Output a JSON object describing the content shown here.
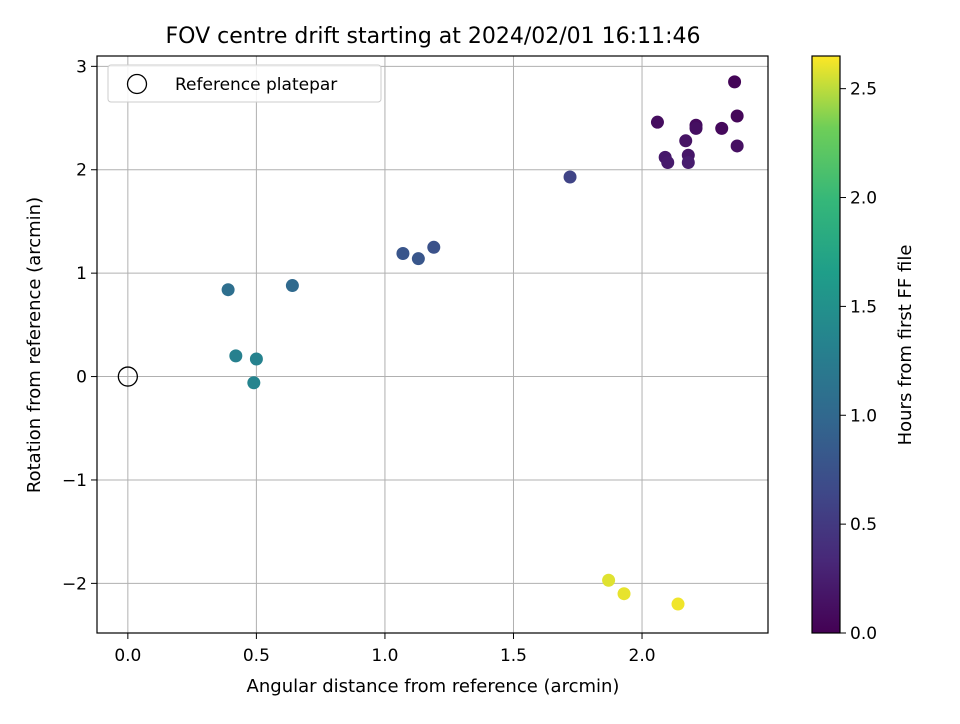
{
  "chart_data": {
    "type": "scatter",
    "title": "FOV centre drift starting at 2024/02/01 16:11:46",
    "xlabel": "Angular distance from reference (arcmin)",
    "ylabel": "Rotation from reference (arcmin)",
    "xlim": [
      -0.12,
      2.49
    ],
    "ylim": [
      -2.48,
      3.1
    ],
    "xticks": [
      0.0,
      0.5,
      1.0,
      1.5,
      2.0
    ],
    "xtick_labels": [
      "0.0",
      "0.5",
      "1.0",
      "1.5",
      "2.0"
    ],
    "yticks": [
      -2,
      -1,
      0,
      1,
      2,
      3
    ],
    "ytick_labels": [
      "−2",
      "−1",
      "0",
      "1",
      "2",
      "3"
    ],
    "grid": true,
    "legend": {
      "placement": "top-left",
      "entries": [
        "Reference platepar"
      ]
    },
    "reference_point": {
      "x": 0.0,
      "y": 0.0
    },
    "colorbar": {
      "label": "Hours from first FF file",
      "colormap": "viridis",
      "range": [
        0.0,
        2.65
      ],
      "ticks": [
        0.0,
        0.5,
        1.0,
        1.5,
        2.0,
        2.5
      ],
      "tick_labels": [
        "0.0",
        "0.5",
        "1.0",
        "1.5",
        "2.0",
        "2.5"
      ]
    },
    "points": [
      {
        "x": 2.36,
        "y": 2.85,
        "t": 0.03
      },
      {
        "x": 2.37,
        "y": 2.52,
        "t": 0.05
      },
      {
        "x": 2.06,
        "y": 2.46,
        "t": 0.1
      },
      {
        "x": 2.21,
        "y": 2.43,
        "t": 0.08
      },
      {
        "x": 2.31,
        "y": 2.4,
        "t": 0.07
      },
      {
        "x": 2.21,
        "y": 2.4,
        "t": 0.12
      },
      {
        "x": 2.17,
        "y": 2.28,
        "t": 0.15
      },
      {
        "x": 2.37,
        "y": 2.23,
        "t": 0.13
      },
      {
        "x": 2.18,
        "y": 2.14,
        "t": 0.18
      },
      {
        "x": 2.09,
        "y": 2.12,
        "t": 0.2
      },
      {
        "x": 2.1,
        "y": 2.07,
        "t": 0.22
      },
      {
        "x": 2.18,
        "y": 2.07,
        "t": 0.24
      },
      {
        "x": 1.72,
        "y": 1.93,
        "t": 0.6
      },
      {
        "x": 1.19,
        "y": 1.25,
        "t": 0.75
      },
      {
        "x": 1.07,
        "y": 1.19,
        "t": 0.78
      },
      {
        "x": 1.13,
        "y": 1.14,
        "t": 0.8
      },
      {
        "x": 0.64,
        "y": 0.88,
        "t": 1.02
      },
      {
        "x": 0.39,
        "y": 0.84,
        "t": 1.08
      },
      {
        "x": 0.42,
        "y": 0.2,
        "t": 1.3
      },
      {
        "x": 0.5,
        "y": 0.17,
        "t": 1.32
      },
      {
        "x": 0.49,
        "y": -0.06,
        "t": 1.35
      },
      {
        "x": 1.87,
        "y": -1.97,
        "t": 2.58
      },
      {
        "x": 1.93,
        "y": -2.1,
        "t": 2.6
      },
      {
        "x": 2.14,
        "y": -2.2,
        "t": 2.62
      }
    ]
  }
}
